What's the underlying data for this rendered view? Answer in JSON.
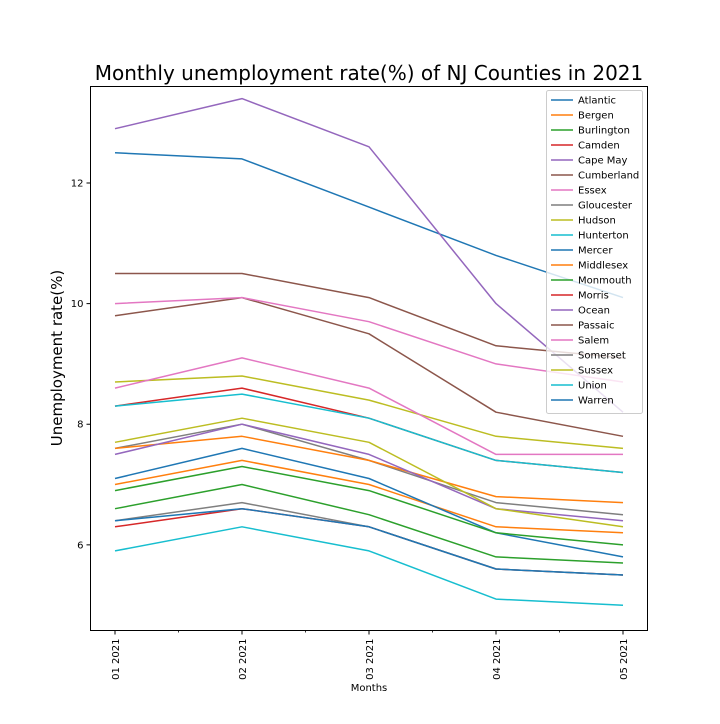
{
  "chart_data": {
    "type": "line",
    "title": "Monthly unemployment rate(%) of NJ Counties in 2021",
    "xlabel": "Months",
    "ylabel": "Unemployment rate(%)",
    "x": [
      "01 2021",
      "02 2021",
      "03 2021",
      "04 2021",
      "05 2021"
    ],
    "ylim": [
      4.58,
      13.6
    ],
    "yticks": [
      6,
      8,
      10,
      12
    ],
    "grid": false,
    "legend_position": "top-right",
    "series": [
      {
        "name": "Atlantic",
        "color": "#1f77b4",
        "values": [
          12.5,
          12.4,
          11.6,
          10.8,
          10.1
        ]
      },
      {
        "name": "Bergen",
        "color": "#ff7f0e",
        "values": [
          7.0,
          7.4,
          7.0,
          6.3,
          6.2
        ]
      },
      {
        "name": "Burlington",
        "color": "#2ca02c",
        "values": [
          6.6,
          7.0,
          6.5,
          5.8,
          5.7
        ]
      },
      {
        "name": "Camden",
        "color": "#d62728",
        "values": [
          8.3,
          8.6,
          8.1,
          7.4,
          7.2
        ]
      },
      {
        "name": "Cape May",
        "color": "#9467bd",
        "values": [
          12.9,
          13.4,
          12.6,
          10.0,
          8.2
        ]
      },
      {
        "name": "Cumberland",
        "color": "#8c564b",
        "values": [
          9.8,
          10.1,
          9.5,
          8.2,
          7.8
        ]
      },
      {
        "name": "Essex",
        "color": "#e377c2",
        "values": [
          10.0,
          10.1,
          9.7,
          9.0,
          8.7
        ]
      },
      {
        "name": "Gloucester",
        "color": "#7f7f7f",
        "values": [
          7.6,
          8.0,
          7.4,
          6.7,
          6.5
        ]
      },
      {
        "name": "Hudson",
        "color": "#bcbd22",
        "values": [
          8.7,
          8.8,
          8.4,
          7.8,
          7.6
        ]
      },
      {
        "name": "Hunterton",
        "color": "#17becf",
        "values": [
          5.9,
          6.3,
          5.9,
          5.1,
          5.0
        ]
      },
      {
        "name": "Mercer",
        "color": "#1f77b4",
        "values": [
          7.1,
          7.6,
          7.1,
          6.2,
          5.8
        ]
      },
      {
        "name": "Middlesex",
        "color": "#ff7f0e",
        "values": [
          7.6,
          7.8,
          7.4,
          6.8,
          6.7
        ]
      },
      {
        "name": "Monmouth",
        "color": "#2ca02c",
        "values": [
          6.9,
          7.3,
          6.9,
          6.2,
          6.0
        ]
      },
      {
        "name": "Morris",
        "color": "#d62728",
        "values": [
          6.3,
          6.6,
          6.3,
          5.6,
          5.5
        ]
      },
      {
        "name": "Ocean",
        "color": "#9467bd",
        "values": [
          7.5,
          8.0,
          7.5,
          6.6,
          6.4
        ]
      },
      {
        "name": "Passaic",
        "color": "#8c564b",
        "values": [
          10.5,
          10.5,
          10.1,
          9.3,
          9.1
        ]
      },
      {
        "name": "Salem",
        "color": "#e377c2",
        "values": [
          8.6,
          9.1,
          8.6,
          7.5,
          7.5
        ]
      },
      {
        "name": "Somerset",
        "color": "#7f7f7f",
        "values": [
          6.4,
          6.7,
          6.3,
          5.6,
          5.5
        ]
      },
      {
        "name": "Sussex",
        "color": "#bcbd22",
        "values": [
          7.7,
          8.1,
          7.7,
          6.6,
          6.3
        ]
      },
      {
        "name": "Union",
        "color": "#17becf",
        "values": [
          8.3,
          8.5,
          8.1,
          7.4,
          7.2
        ]
      },
      {
        "name": "Warren",
        "color": "#1f77b4",
        "values": [
          6.4,
          6.6,
          6.3,
          5.6,
          5.5
        ]
      }
    ]
  }
}
